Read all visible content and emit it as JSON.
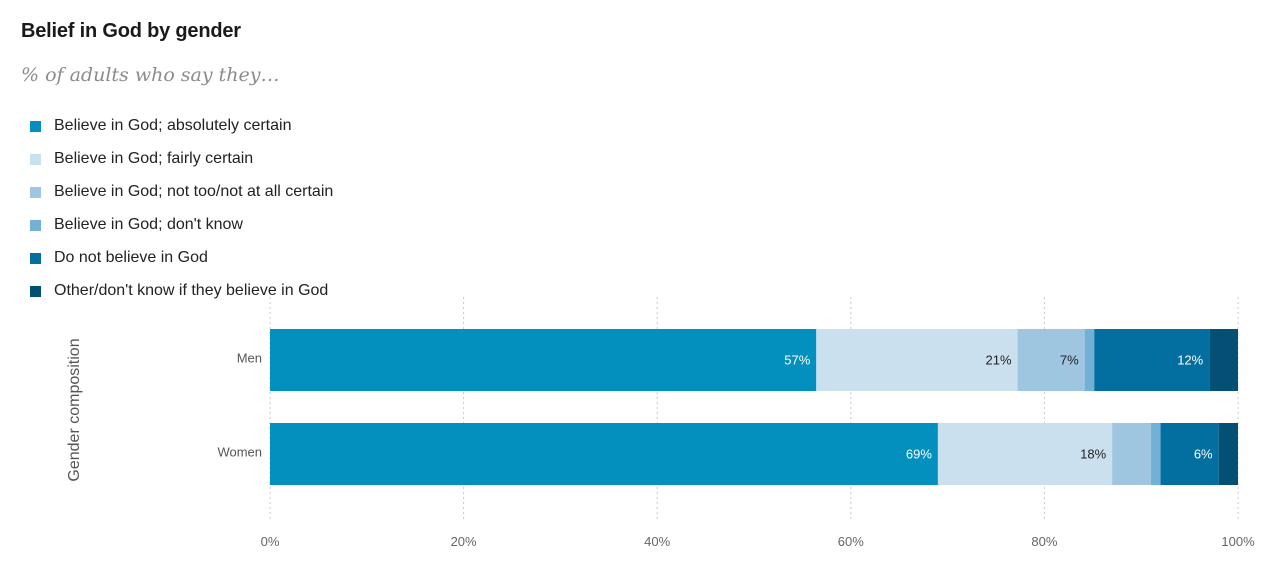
{
  "colors": {
    "absolutely_certain": "#0390bf",
    "fairly_certain": "#cbe0ef",
    "not_too_certain": "#9fc6e0",
    "dont_know": "#72b0d6",
    "not_believe": "#036fa0",
    "other": "#044f74"
  },
  "chart_data": {
    "type": "bar",
    "orientation": "horizontal",
    "stacked": true,
    "title": "Belief in God by gender",
    "subtitle": "% of adults who say they…",
    "ylabel": "Gender composition",
    "xlabel": "",
    "xlim": [
      0,
      100
    ],
    "xticks": [
      "0%",
      "20%",
      "40%",
      "60%",
      "80%",
      "100%"
    ],
    "grid": true,
    "legend_position": "top-left",
    "categories": [
      "Men",
      "Women"
    ],
    "series": [
      {
        "name": "Believe in God; absolutely certain",
        "color": "#0390bf",
        "values": [
          57,
          69
        ],
        "labels": [
          "57%",
          "69%"
        ],
        "label_color": "#ffffff"
      },
      {
        "name": "Believe in God; fairly certain",
        "color": "#cbe0ef",
        "values": [
          21,
          18
        ],
        "labels": [
          "21%",
          "18%"
        ],
        "label_color": "#222222"
      },
      {
        "name": "Believe in God; not too/not at all certain",
        "color": "#9fc6e0",
        "values": [
          7,
          4
        ],
        "labels": [
          "7%",
          ""
        ],
        "label_color": "#222222"
      },
      {
        "name": "Believe in God; don't know",
        "color": "#72b0d6",
        "values": [
          1,
          1
        ],
        "labels": [
          "",
          ""
        ],
        "label_color": "#222222"
      },
      {
        "name": "Do not believe in God",
        "color": "#036fa0",
        "values": [
          12,
          6
        ],
        "labels": [
          "12%",
          "6%"
        ],
        "label_color": "#ffffff"
      },
      {
        "name": "Other/don't know if they believe in God",
        "color": "#044f74",
        "values": [
          3,
          2
        ],
        "labels": [
          "",
          ""
        ],
        "label_color": "#ffffff"
      }
    ]
  }
}
